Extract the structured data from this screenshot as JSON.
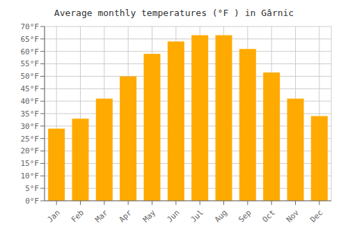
{
  "chart_data": {
    "type": "bar",
    "title": "Average monthly temperatures (°F ) in Gârnic",
    "categories": [
      "Jan",
      "Feb",
      "Mar",
      "Apr",
      "May",
      "Jun",
      "Jul",
      "Aug",
      "Sep",
      "Oct",
      "Nov",
      "Dec"
    ],
    "values": [
      29,
      33,
      41,
      50,
      59,
      64,
      66.5,
      66.5,
      61,
      51.5,
      41,
      34
    ],
    "color": "#FFAA00",
    "ylim": [
      0,
      70
    ],
    "yticks": [
      {
        "value": 0,
        "label": "0°F"
      },
      {
        "value": 5,
        "label": "5°F"
      },
      {
        "value": 10,
        "label": "10°F"
      },
      {
        "value": 15,
        "label": "15°F"
      },
      {
        "value": 20,
        "label": "20°F"
      },
      {
        "value": 25,
        "label": "25°F"
      },
      {
        "value": 30,
        "label": "30°F"
      },
      {
        "value": 35,
        "label": "35°F"
      },
      {
        "value": 40,
        "label": "40°F"
      },
      {
        "value": 45,
        "label": "45°F"
      },
      {
        "value": 50,
        "label": "50°F"
      },
      {
        "value": 55,
        "label": "55°F"
      },
      {
        "value": 60,
        "label": "60°F"
      },
      {
        "value": 65,
        "label": "65°F"
      },
      {
        "value": 70,
        "label": "70°F"
      }
    ],
    "grid": true
  }
}
